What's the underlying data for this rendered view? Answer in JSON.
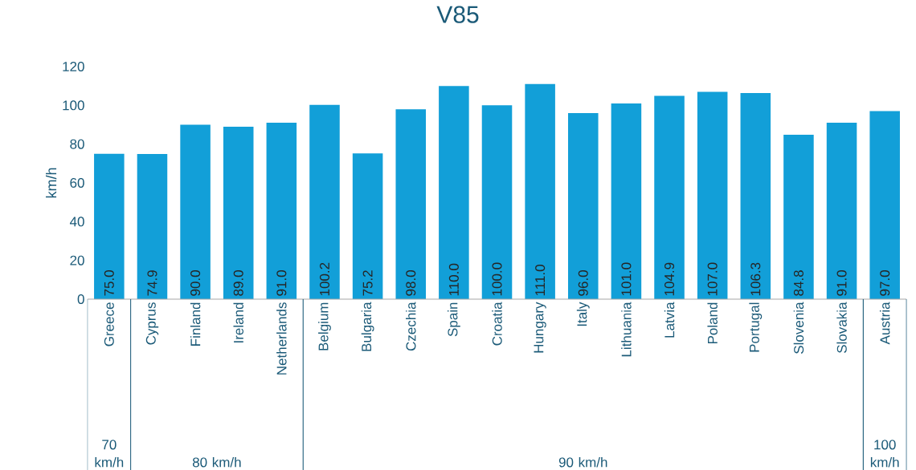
{
  "chart_data": {
    "type": "bar",
    "title": "V85",
    "ylabel": "km/h",
    "categories": [
      "Greece",
      "Cyprus",
      "Finland",
      "Ireland",
      "Netherlands",
      "Belgium",
      "Bulgaria",
      "Czechia",
      "Spain",
      "Croatia",
      "Hungary",
      "Italy",
      "Lithuania",
      "Latvia",
      "Poland",
      "Portugal",
      "Slovenia",
      "Slovakia",
      "Austria"
    ],
    "values": [
      75.0,
      74.9,
      90.0,
      89.0,
      91.0,
      100.2,
      75.2,
      98.0,
      110.0,
      100.0,
      111.0,
      96.0,
      101.0,
      104.9,
      107.0,
      106.3,
      84.8,
      91.0,
      97.0
    ],
    "value_labels": [
      "75.0",
      "74.9",
      "90.0",
      "89.0",
      "91.0",
      "100.2",
      "75.2",
      "98.0",
      "110.0",
      "100.0",
      "111.0",
      "96.0",
      "101.0",
      "104.9",
      "107.0",
      "106.3",
      "84.8",
      "91.0",
      "97.0"
    ],
    "color": "#129fd8",
    "ylim": [
      0,
      120
    ],
    "yticks": [
      0,
      20,
      40,
      60,
      80,
      100,
      120
    ],
    "annotations": [
      "70 km/h",
      "80 km/h",
      "90 km/h",
      "100 km/h"
    ]
  }
}
